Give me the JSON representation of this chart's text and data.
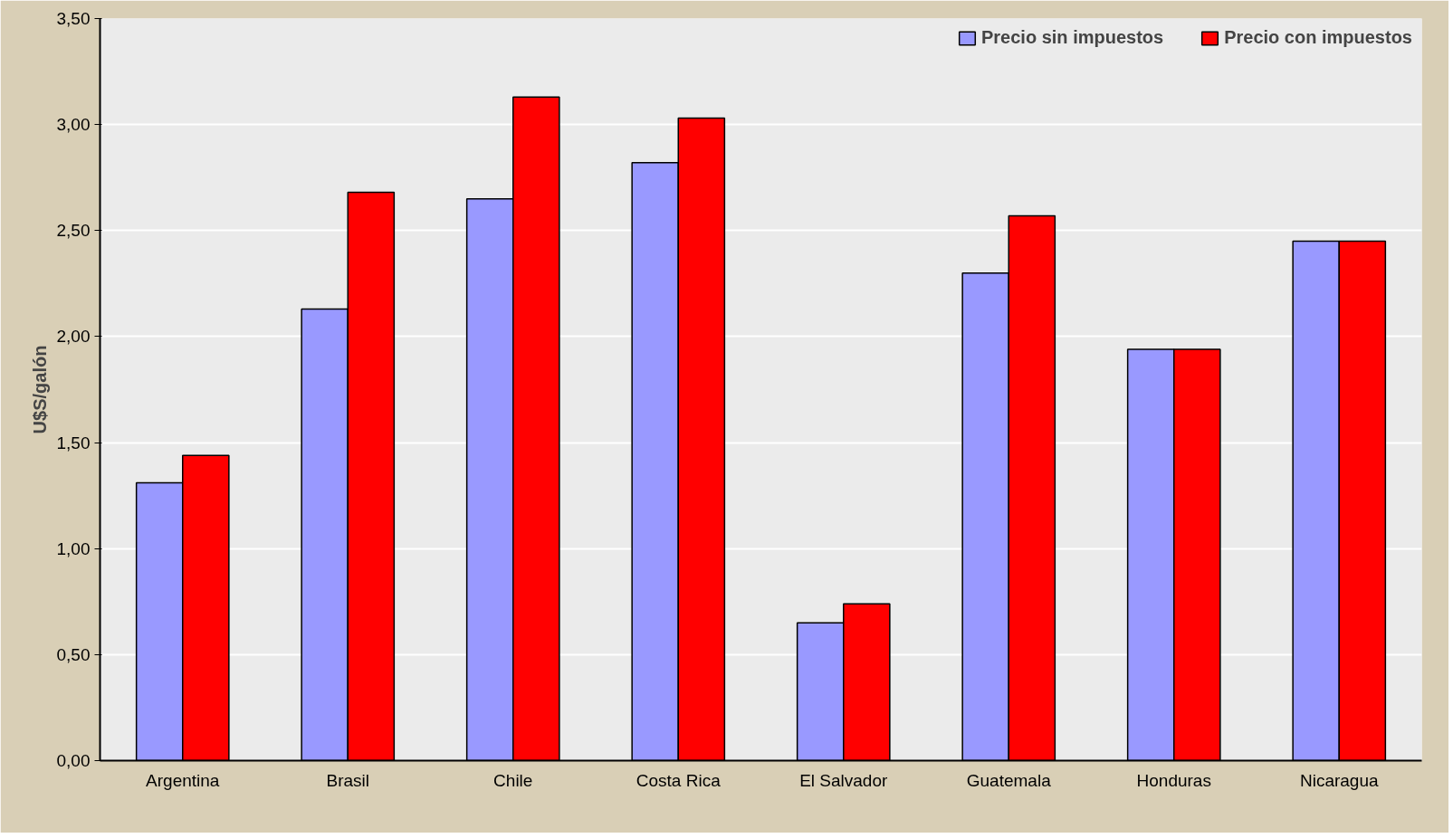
{
  "chart_data": {
    "type": "bar",
    "ylabel": "U$S/galón",
    "categories": [
      "Argentina",
      "Brasil",
      "Chile",
      "Costa Rica",
      "El Salvador",
      "Guatemala",
      "Honduras",
      "Nicaragua"
    ],
    "series": [
      {
        "name": "Precio sin impuestos",
        "color": "#9999ff",
        "values": [
          1.31,
          2.13,
          2.65,
          2.82,
          0.65,
          2.3,
          1.94,
          2.45
        ]
      },
      {
        "name": "Precio con impuestos",
        "color": "#ff0000",
        "values": [
          1.44,
          2.68,
          3.13,
          3.03,
          0.74,
          2.57,
          1.94,
          2.45
        ]
      }
    ],
    "ylim": [
      0,
      3.5
    ],
    "yticks": [
      {
        "value": 0,
        "label": "0,00"
      },
      {
        "value": 0.5,
        "label": "0,50"
      },
      {
        "value": 1,
        "label": "1,00"
      },
      {
        "value": 1.5,
        "label": "1,50"
      },
      {
        "value": 2,
        "label": "2,00"
      },
      {
        "value": 2.5,
        "label": "2,50"
      },
      {
        "value": 3,
        "label": "3,00"
      },
      {
        "value": 3.5,
        "label": "3,50"
      }
    ],
    "grid": "y",
    "legend": "top right"
  }
}
